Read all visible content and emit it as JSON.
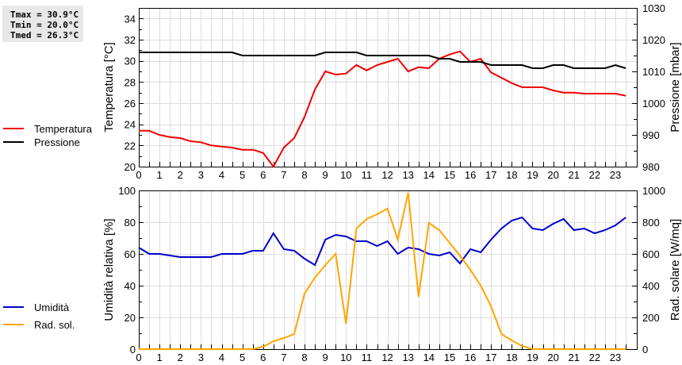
{
  "stats": {
    "tmax": "Tmax = 30.9°C",
    "tmin": "Tmin = 20.0°C",
    "tmed": "Tmed = 26.3°C"
  },
  "legend_top": [
    {
      "label": "Temperatura",
      "color": "#ee0000"
    },
    {
      "label": "Pressione",
      "color": "#000000"
    }
  ],
  "legend_bottom": [
    {
      "label": "Umidità",
      "color": "#0000cc"
    },
    {
      "label": "Rad. sol.",
      "color": "#ffa500"
    }
  ],
  "chart_data": [
    {
      "type": "line",
      "title": "",
      "xlabel": "",
      "ylabel": "Temperatura [°C]",
      "y2label": "Pressione [mbar]",
      "xlim": [
        0,
        24
      ],
      "ylim": [
        20,
        35
      ],
      "y2lim": [
        980,
        1030
      ],
      "x_ticks": [
        0,
        1,
        2,
        3,
        4,
        5,
        6,
        7,
        8,
        9,
        10,
        11,
        12,
        13,
        14,
        15,
        16,
        17,
        18,
        19,
        20,
        21,
        22,
        23
      ],
      "y_ticks": [
        20,
        22,
        24,
        26,
        28,
        30,
        32,
        34
      ],
      "y2_ticks": [
        980,
        990,
        1000,
        1010,
        1020,
        1030
      ],
      "grid": true,
      "x": [
        0,
        0.5,
        1,
        1.5,
        2,
        2.5,
        3,
        3.5,
        4,
        4.5,
        5,
        5.5,
        6,
        6.5,
        7,
        7.5,
        8,
        8.5,
        9,
        9.5,
        10,
        10.5,
        11,
        11.5,
        12,
        12.5,
        13,
        13.5,
        14,
        14.5,
        15,
        15.5,
        16,
        16.5,
        17,
        17.5,
        18,
        18.5,
        19,
        19.5,
        20,
        20.5,
        21,
        21.5,
        22,
        22.5,
        23,
        23.5
      ],
      "series": [
        {
          "name": "Temperatura",
          "axis": "left",
          "color": "#ee0000",
          "values": [
            23.4,
            23.4,
            23.0,
            22.8,
            22.7,
            22.4,
            22.3,
            22.0,
            21.9,
            21.8,
            21.6,
            21.6,
            21.3,
            20.0,
            21.8,
            22.7,
            24.7,
            27.3,
            29.0,
            28.7,
            28.8,
            29.6,
            29.1,
            29.6,
            29.9,
            30.2,
            29.0,
            29.4,
            29.3,
            30.2,
            30.6,
            30.9,
            29.9,
            30.2,
            28.9,
            28.4,
            27.9,
            27.5,
            27.5,
            27.5,
            27.2,
            27.0,
            27.0,
            26.9,
            26.9,
            26.9,
            26.9,
            26.7
          ]
        },
        {
          "name": "Pressione",
          "axis": "right",
          "color": "#000000",
          "values": [
            1016,
            1016,
            1016,
            1016,
            1016,
            1016,
            1016,
            1016,
            1016,
            1016,
            1015,
            1015,
            1015,
            1015,
            1015,
            1015,
            1015,
            1015,
            1016,
            1016,
            1016,
            1016,
            1015,
            1015,
            1015,
            1015,
            1015,
            1015,
            1015,
            1014,
            1014,
            1013,
            1013,
            1013,
            1012,
            1012,
            1012,
            1012,
            1011,
            1011,
            1012,
            1012,
            1011,
            1011,
            1011,
            1011,
            1012,
            1011
          ]
        }
      ]
    },
    {
      "type": "line",
      "title": "",
      "xlabel": "",
      "ylabel": "Umidità relativa [%]",
      "y2label": "Rad. solare [W/mq]",
      "xlim": [
        0,
        24
      ],
      "ylim": [
        0,
        100
      ],
      "y2lim": [
        0,
        1000
      ],
      "x_ticks": [
        0,
        1,
        2,
        3,
        4,
        5,
        6,
        7,
        8,
        9,
        10,
        11,
        12,
        13,
        14,
        15,
        16,
        17,
        18,
        19,
        20,
        21,
        22,
        23
      ],
      "y_ticks": [
        0,
        20,
        40,
        60,
        80,
        100
      ],
      "y2_ticks": [
        0,
        200,
        400,
        600,
        800,
        1000
      ],
      "grid": true,
      "x": [
        0,
        0.5,
        1,
        1.5,
        2,
        2.5,
        3,
        3.5,
        4,
        4.5,
        5,
        5.5,
        6,
        6.5,
        7,
        7.5,
        8,
        8.5,
        9,
        9.5,
        10,
        10.5,
        11,
        11.5,
        12,
        12.5,
        13,
        13.5,
        14,
        14.5,
        15,
        15.5,
        16,
        16.5,
        17,
        17.5,
        18,
        18.5,
        19,
        19.5,
        20,
        20.5,
        21,
        21.5,
        22,
        22.5,
        23,
        23.5
      ],
      "series": [
        {
          "name": "Umidità",
          "axis": "left",
          "color": "#0000cc",
          "values": [
            64,
            60,
            60,
            59,
            58,
            58,
            58,
            58,
            60,
            60,
            60,
            62,
            62,
            73,
            63,
            62,
            57,
            53,
            69,
            72,
            71,
            68,
            68,
            65,
            68,
            60,
            64,
            63,
            60,
            59,
            61,
            54,
            63,
            61,
            69,
            76,
            81,
            83,
            76,
            75,
            79,
            82,
            75,
            76,
            73,
            75,
            78,
            83
          ]
        },
        {
          "name": "Rad. sol.",
          "axis": "right",
          "color": "#ffa500",
          "values": [
            0,
            0,
            0,
            0,
            0,
            0,
            0,
            0,
            0,
            0,
            0,
            0,
            15,
            50,
            70,
            95,
            350,
            450,
            530,
            600,
            160,
            760,
            820,
            850,
            885,
            690,
            985,
            330,
            795,
            750,
            670,
            590,
            500,
            400,
            270,
            95,
            55,
            20,
            0,
            0,
            0,
            0,
            0,
            0,
            0,
            0,
            0,
            0
          ]
        }
      ]
    }
  ]
}
